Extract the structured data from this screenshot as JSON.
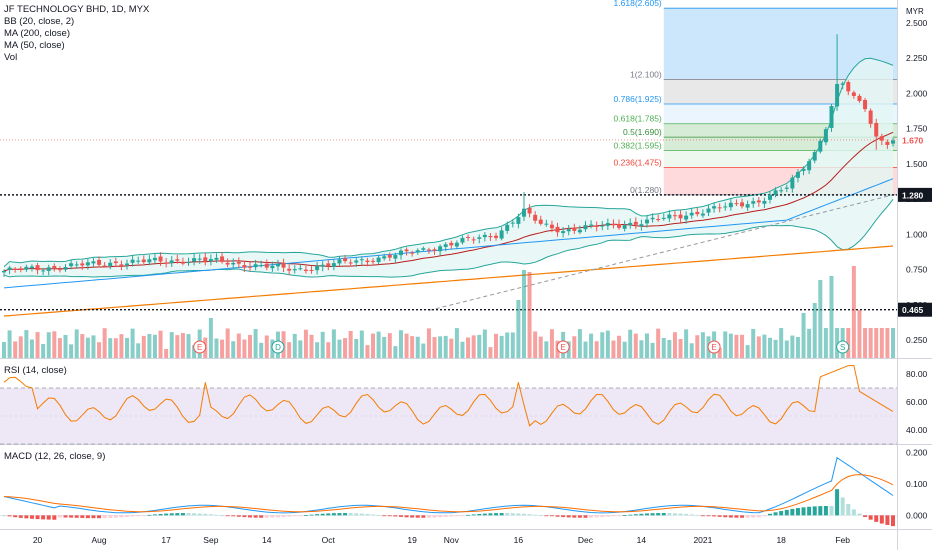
{
  "legend": {
    "title": "JF TECHNOLOGY BHD, 1D, MYX",
    "bb": "BB (20, close, 2)",
    "ma200": "MA (200, close)",
    "ma50": "MA (50, close)",
    "vol": "Vol"
  },
  "currency": "MYR",
  "price_tags": {
    "upper": "1.280",
    "current": "1.670",
    "lower": "0.465"
  },
  "rsi_title": "RSI (14, close)",
  "macd_title": "MACD (12, 26, close, 9)",
  "colors": {
    "up": "#26a69a",
    "down": "#ef5350",
    "bb": "#2962ff",
    "bbfill": "#e3f6f4",
    "ma200": "#f57c00",
    "ma50": "#2196f3",
    "basis": "#b71c1c",
    "rsi": "#f57c00",
    "rsi_band": "#ede7f6",
    "macd": "#2196f3",
    "signal": "#ff6d00"
  },
  "events": [
    "E",
    "D",
    "E",
    "E",
    "S"
  ],
  "chart_data": [
    {
      "type": "candlestick",
      "title": "JF TECHNOLOGY BHD, 1D, MYX",
      "ylabel": "MYR",
      "ylim": [
        0.2,
        2.65
      ],
      "y_ticks": [
        "0.250",
        "0.500",
        "0.750",
        "1.000",
        "1.250",
        "1.500",
        "1.750",
        "2.000",
        "2.250",
        "2.500"
      ],
      "x_ticks": [
        "20",
        "Aug",
        "17",
        "Sep",
        "14",
        "Oct",
        "19",
        "Nov",
        "16",
        "Dec",
        "14",
        "2021",
        "18",
        "Feb"
      ],
      "horizontal_lines": [
        1.28,
        0.465
      ],
      "fibonacci": [
        {
          "label": "1.618(2.605)",
          "value": 2.605
        },
        {
          "label": "1(2.100)",
          "value": 2.1
        },
        {
          "label": "0.786(1.925)",
          "value": 1.925
        },
        {
          "label": "0.618(1.785)",
          "value": 1.785
        },
        {
          "label": "0.5(1.690)",
          "value": 1.69
        },
        {
          "label": "0.382(1.595)",
          "value": 1.595
        },
        {
          "label": "0.236(1.475)",
          "value": 1.475
        },
        {
          "label": "0(1.280)",
          "value": 1.28
        }
      ],
      "last_price": 1.67
    },
    {
      "type": "line",
      "title": "RSI (14, close)",
      "ylim": [
        30,
        90
      ],
      "y_ticks": [
        "40.00",
        "60.00",
        "80.00"
      ],
      "band": [
        30,
        70
      ]
    },
    {
      "type": "line",
      "title": "MACD (12, 26, close, 9)",
      "ylim": [
        -0.04,
        0.22
      ],
      "y_ticks": [
        "0.000",
        "0.100",
        "0.200"
      ]
    }
  ]
}
